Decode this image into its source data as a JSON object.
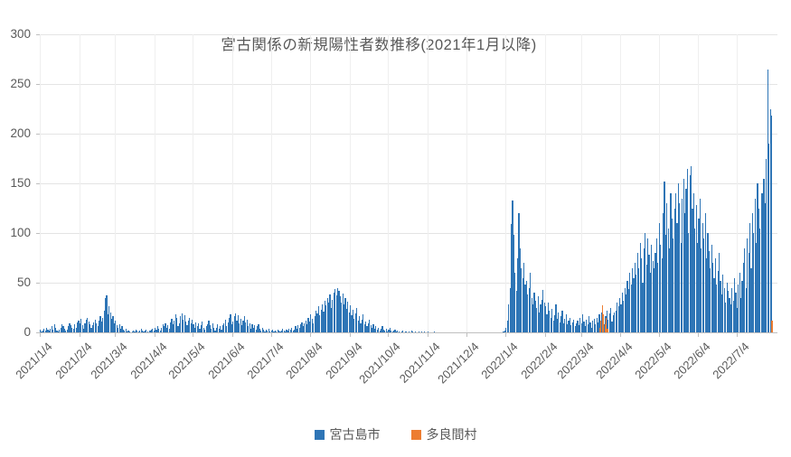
{
  "chart_data": {
    "type": "bar",
    "title": "宮古関係の新規陽性者数推移(2021年1月以降)",
    "xlabel": "",
    "ylabel": "",
    "ylim": [
      0,
      300
    ],
    "y_ticks": [
      0,
      50,
      100,
      150,
      200,
      250,
      300
    ],
    "grid": true,
    "legend_position": "bottom",
    "start_date": "2021/1/4",
    "frequency": "daily",
    "x_tick_labels": [
      "2021/1/4",
      "2021/2/4",
      "2021/3/4",
      "2021/4/4",
      "2021/5/4",
      "2021/6/4",
      "2021/7/4",
      "2021/8/4",
      "2021/9/4",
      "2021/10/4",
      "2021/11/4",
      "2021/12/4",
      "2022/1/4",
      "2022/2/4",
      "2022/3/4",
      "2022/4/4",
      "2022/5/4",
      "2022/6/4",
      "2022/7/4"
    ],
    "x_tick_day_offsets": [
      0,
      31,
      59,
      90,
      120,
      151,
      181,
      212,
      243,
      273,
      304,
      334,
      365,
      396,
      424,
      455,
      485,
      516,
      546
    ],
    "series": [
      {
        "name": "宮古島市",
        "color": "#2E75B6",
        "values": [
          3,
          1,
          2,
          4,
          2,
          5,
          3,
          2,
          4,
          6,
          3,
          8,
          5,
          2,
          1,
          3,
          5,
          8,
          6,
          4,
          2,
          3,
          6,
          9,
          7,
          5,
          4,
          8,
          5,
          10,
          12,
          9,
          14,
          7,
          4,
          9,
          13,
          15,
          11,
          8,
          5,
          7,
          10,
          13,
          9,
          6,
          12,
          16,
          11,
          15,
          22,
          35,
          37,
          18,
          26,
          20,
          14,
          16,
          9,
          12,
          7,
          5,
          8,
          4,
          6,
          3,
          2,
          4,
          1,
          2,
          1,
          0,
          1,
          2,
          1,
          3,
          2,
          1,
          2,
          4,
          2,
          1,
          2,
          3,
          1,
          0,
          2,
          3,
          4,
          2,
          5,
          3,
          6,
          4,
          2,
          5,
          8,
          6,
          9,
          5,
          7,
          4,
          10,
          14,
          8,
          12,
          18,
          15,
          6,
          9,
          16,
          19,
          13,
          17,
          11,
          7,
          12,
          15,
          9,
          13,
          8,
          5,
          10,
          6,
          9,
          4,
          7,
          11,
          5,
          3,
          6,
          8,
          12,
          7,
          4,
          9,
          5,
          2,
          5,
          8,
          4,
          6,
          3,
          7,
          9,
          13,
          6,
          10,
          15,
          18,
          8,
          11,
          16,
          19,
          12,
          17,
          9,
          14,
          7,
          12,
          16,
          10,
          13,
          6,
          9,
          4,
          8,
          5,
          7,
          3,
          6,
          8,
          4,
          2,
          5,
          3,
          1,
          3,
          2,
          4,
          1,
          2,
          3,
          1,
          2,
          1,
          3,
          2,
          1,
          2,
          4,
          2,
          1,
          3,
          2,
          4,
          3,
          5,
          2,
          3,
          6,
          4,
          7,
          5,
          8,
          10,
          6,
          9,
          12,
          8,
          15,
          11,
          18,
          14,
          9,
          16,
          22,
          19,
          26,
          17,
          23,
          28,
          21,
          32,
          27,
          35,
          30,
          38,
          25,
          33,
          40,
          44,
          37,
          45,
          42,
          36,
          30,
          39,
          28,
          35,
          24,
          31,
          20,
          27,
          17,
          23,
          14,
          19,
          25,
          12,
          16,
          9,
          13,
          18,
          8,
          11,
          6,
          9,
          13,
          7,
          5,
          8,
          4,
          6,
          3,
          5,
          2,
          4,
          6,
          3,
          2,
          4,
          1,
          3,
          5,
          2,
          1,
          2,
          3,
          1,
          2,
          1,
          0,
          1,
          2,
          0,
          1,
          1,
          0,
          1,
          0,
          2,
          1,
          0,
          1,
          0,
          0,
          1,
          0,
          1,
          0,
          1,
          0,
          0,
          1,
          0,
          0,
          0,
          0,
          1,
          0,
          0,
          0,
          0,
          0,
          0,
          0,
          0,
          0,
          0,
          0,
          0,
          0,
          0,
          0,
          0,
          0,
          0,
          0,
          0,
          0,
          0,
          0,
          0,
          0,
          0,
          0,
          0,
          0,
          0,
          0,
          0,
          0,
          0,
          0,
          0,
          0,
          0,
          0,
          0,
          0,
          0,
          0,
          0,
          0,
          0,
          0,
          0,
          0,
          0,
          0,
          0,
          0,
          1,
          2,
          5,
          12,
          28,
          45,
          109,
          133,
          98,
          60,
          42,
          75,
          120,
          85,
          65,
          55,
          70,
          48,
          52,
          38,
          45,
          60,
          35,
          28,
          40,
          32,
          25,
          36,
          20,
          28,
          33,
          43,
          30,
          26,
          18,
          30,
          22,
          15,
          24,
          12,
          17,
          28,
          14,
          20,
          10,
          16,
          22,
          9,
          14,
          18,
          8,
          12,
          15,
          7,
          10,
          13,
          6,
          9,
          12,
          7,
          15,
          9,
          18,
          11,
          6,
          13,
          8,
          16,
          10,
          5,
          12,
          14,
          8,
          15,
          10,
          18,
          12,
          20,
          14,
          8,
          16,
          22,
          13,
          19,
          25,
          11,
          17,
          20,
          22,
          30,
          26,
          35,
          28,
          40,
          32,
          45,
          38,
          52,
          44,
          60,
          48,
          65,
          55,
          70,
          58,
          80,
          65,
          90,
          75,
          50,
          85,
          100,
          68,
          95,
          78,
          60,
          88,
          72,
          65,
          80,
          95,
          70,
          110,
          88,
          75,
          120,
          152,
          98,
          130,
          105,
          85,
          140,
          115,
          95,
          125,
          140,
          110,
          150,
          130,
          90,
          135,
          155,
          120,
          145,
          165,
          100,
          158,
          167,
          125,
          140,
          105,
          128,
          90,
          115,
          135,
          85,
          110,
          95,
          120,
          75,
          100,
          82,
          65,
          88,
          70,
          55,
          75,
          48,
          62,
          80,
          52,
          38,
          58,
          45,
          30,
          50,
          42,
          35,
          28,
          45,
          32,
          55,
          40,
          25,
          48,
          60,
          35,
          52,
          70,
          85,
          45,
          95,
          80,
          110,
          65,
          120,
          100,
          135,
          90,
          150,
          125,
          105,
          140,
          140,
          155,
          130,
          175,
          265,
          190,
          225,
          218
        ]
      },
      {
        "name": "多良間村",
        "color": "#ED7D31",
        "values_sparse": {
          "438": 5,
          "439": 12,
          "440": 27,
          "441": 18,
          "442": 8,
          "443": 15,
          "444": 4,
          "573": 12
        }
      }
    ]
  },
  "axis_colors": {
    "label": "#595959",
    "gridline": "#e4e4e4",
    "axisline": "#bfbfbf"
  }
}
